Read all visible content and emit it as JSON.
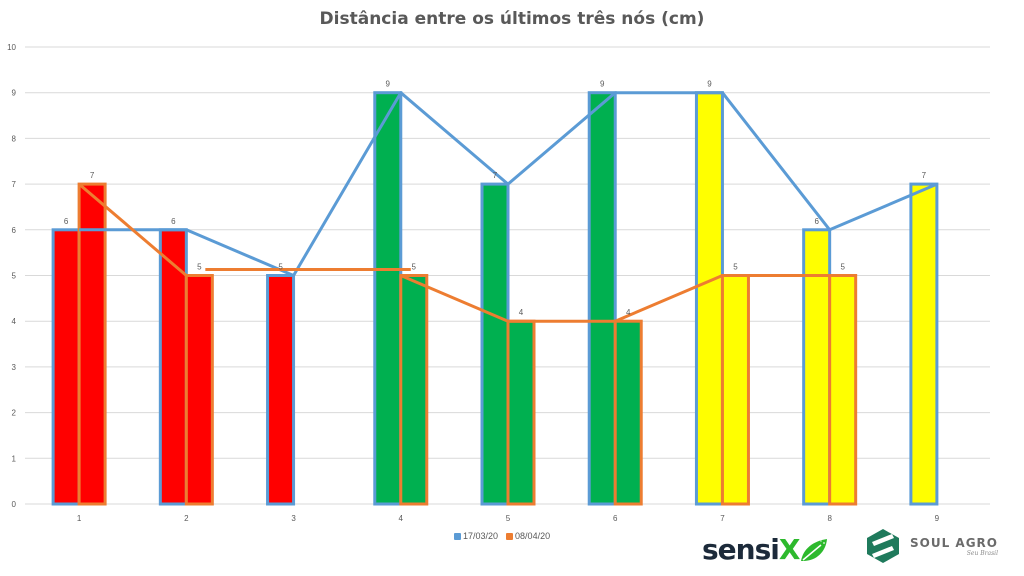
{
  "chart_data": {
    "type": "bar",
    "title": "Distância entre os últimos três nós (cm)",
    "xlabel": "",
    "ylabel": "",
    "ylim": [
      0,
      10
    ],
    "yticks": [
      0,
      1,
      2,
      3,
      4,
      5,
      6,
      7,
      8,
      9,
      10
    ],
    "grid": true,
    "legend_position": "bottom",
    "categories": [
      "1",
      "2",
      "3",
      "4",
      "5",
      "6",
      "7",
      "8",
      "9"
    ],
    "series": [
      {
        "name": "17/03/20",
        "color": "#5B9BD5",
        "values": [
          6,
          6,
          5,
          9,
          7,
          9,
          9,
          6,
          7
        ],
        "line_overlay": true
      },
      {
        "name": "08/04/20",
        "color": "#ED7D31",
        "values": [
          7,
          5,
          null,
          5,
          4,
          4,
          5,
          5,
          null
        ],
        "line_overlay": true
      }
    ],
    "bar_fill_colors": [
      "#FF0000",
      "#FF0000",
      "#FF0000",
      "#00B050",
      "#00B050",
      "#00B050",
      "#FFFF00",
      "#FFFF00",
      "#FFFF00"
    ],
    "data_labels": true
  },
  "legend": {
    "items": [
      {
        "label": "17/03/20",
        "color": "#5B9BD5"
      },
      {
        "label": "08/04/20",
        "color": "#ED7D31"
      }
    ]
  },
  "logos": {
    "sensix": {
      "text_main": "sensi",
      "text_accent": "X"
    },
    "soul_agro": {
      "name": "SOUL AGRO",
      "tagline": "Seu Brasil"
    }
  }
}
